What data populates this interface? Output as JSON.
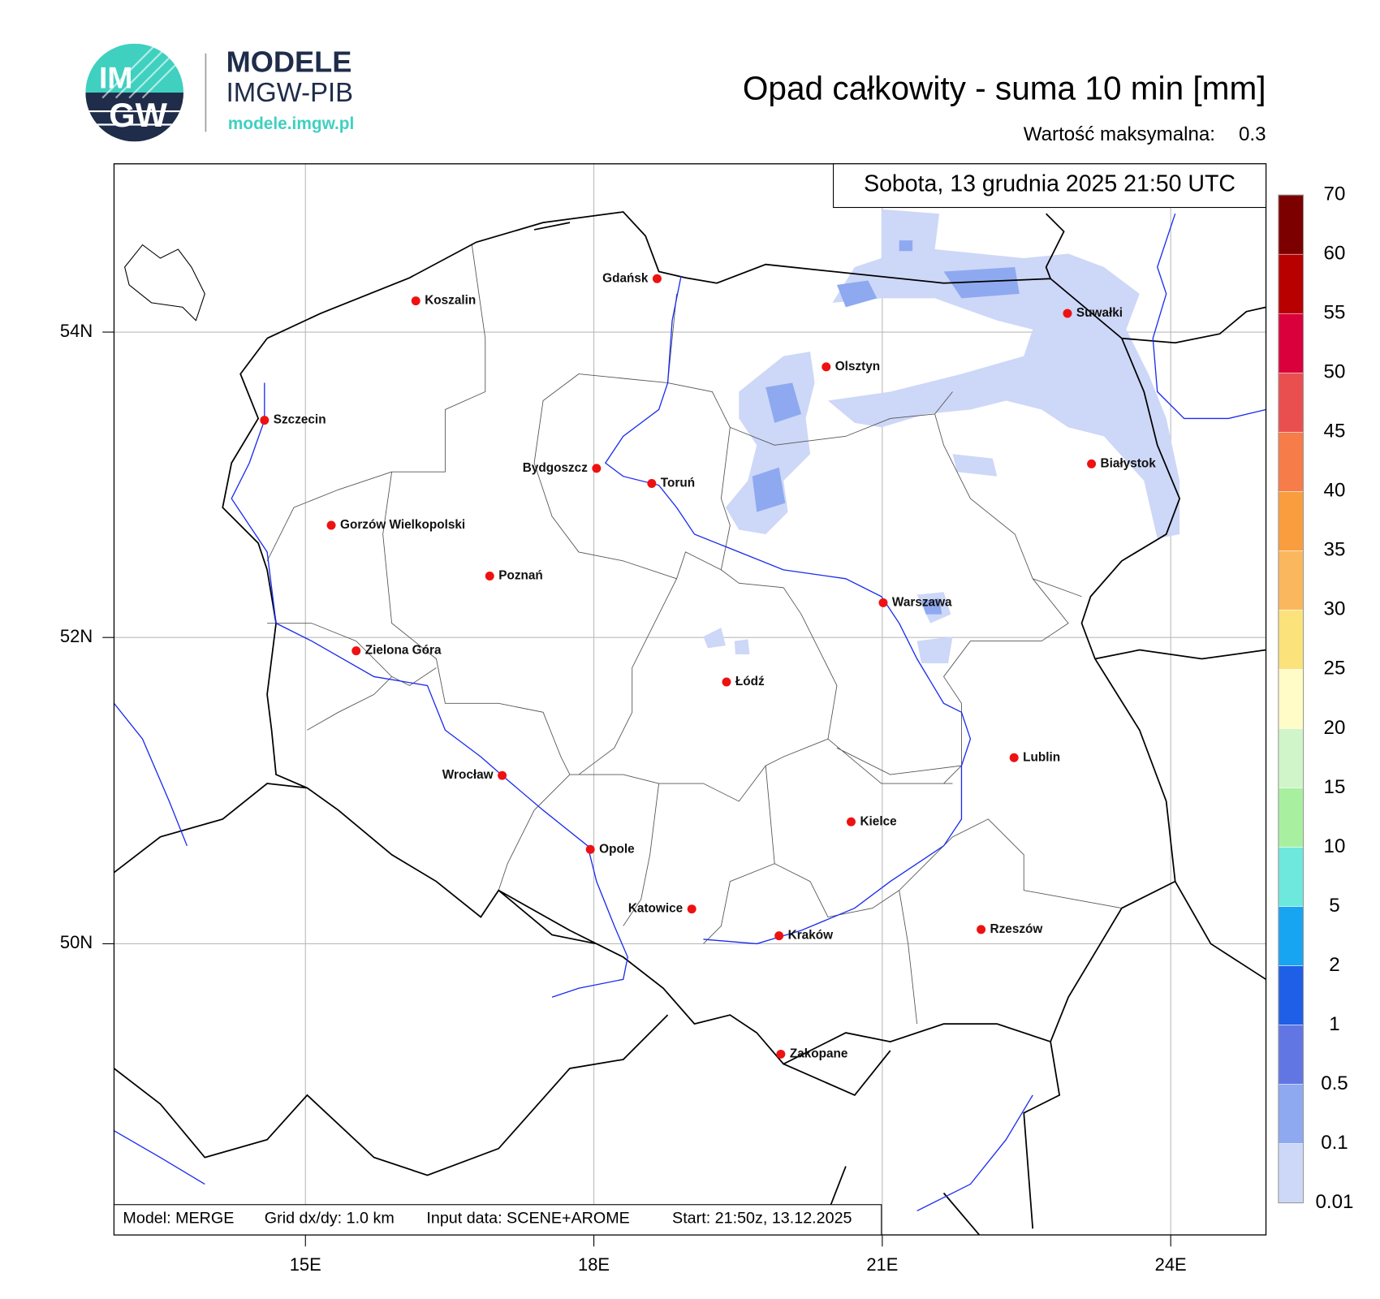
{
  "header": {
    "logo": {
      "initials_top": "IM",
      "initials_bottom": "GW",
      "name": "MODELE",
      "org": "IMGW-PIB",
      "url": "modele.imgw.pl"
    },
    "title": "Opad całkowity - suma 10 min [mm]",
    "max_label": "Wartość maksymalna:",
    "max_value": 0.3
  },
  "map": {
    "timestamp": "Sobota, 13 grudnia 2025 21:50 UTC",
    "cities": [
      "Gdańsk",
      "Koszalin",
      "Suwałki",
      "Olsztyn",
      "Szczecin",
      "Białystok",
      "Bydgoszcz",
      "Toruń",
      "Gorzów Wielkopolski",
      "Poznań",
      "Warszawa",
      "Zielona Góra",
      "Łódź",
      "Lublin",
      "Wrocław",
      "Kielce",
      "Opole",
      "Katowice",
      "Kraków",
      "Rzeszów",
      "Zakopane"
    ],
    "lon_labels": [
      "15E",
      "18E",
      "21E",
      "24E"
    ],
    "lat_labels": [
      "54N",
      "52N",
      "50N"
    ]
  },
  "colorbar": {
    "levels": [
      0.01,
      0.1,
      0.5,
      1,
      2,
      5,
      10,
      15,
      20,
      25,
      30,
      35,
      40,
      45,
      50,
      55,
      60,
      70
    ],
    "colors": [
      "#cdd7f7",
      "#8ea9f0",
      "#6276e3",
      "#1f5ee6",
      "#17a4f0",
      "#6ee8dd",
      "#a8f0a0",
      "#d0f5c8",
      "#fffcc8",
      "#fbe27a",
      "#fbb75e",
      "#f99d3e",
      "#f67c4a",
      "#ea4f50",
      "#d9003c",
      "#b80000",
      "#7c0000"
    ]
  },
  "footer": [
    "Model: MERGE",
    "Grid dx/dy: 1.0 km",
    "Input data: SCENE+AROME",
    "Start: 21:50z, 13.12.2025"
  ]
}
